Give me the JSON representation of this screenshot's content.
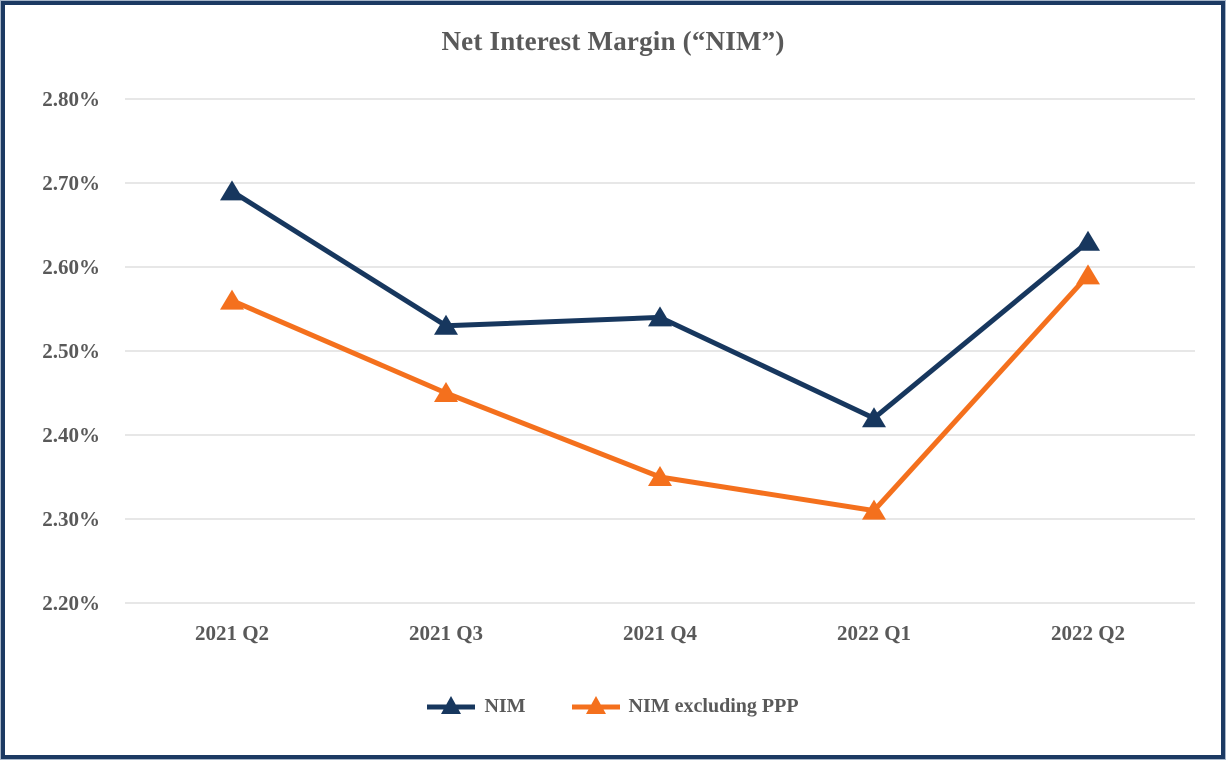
{
  "frame": {
    "border_color": "#1c3a63",
    "outer_line_color": "#a7b6c9",
    "background": "#ffffff"
  },
  "chart_data": {
    "type": "line",
    "title": "Net Interest Margin (“NIM”)",
    "categories": [
      "2021 Q2",
      "2021 Q3",
      "2021 Q4",
      "2022 Q1",
      "2022 Q2"
    ],
    "series": [
      {
        "name": "NIM",
        "values": [
          2.69,
          2.53,
          2.54,
          2.42,
          2.63
        ],
        "color": "#17375E",
        "marker": "triangle-up"
      },
      {
        "name": "NIM excluding PPP",
        "values": [
          2.56,
          2.45,
          2.35,
          2.31,
          2.59
        ],
        "color": "#F4701D",
        "marker": "triangle-up"
      }
    ],
    "y_axis": {
      "min": 2.2,
      "max": 2.8,
      "step": 0.1,
      "tick_labels": [
        "2.80%",
        "2.70%",
        "2.60%",
        "2.50%",
        "2.40%",
        "2.30%",
        "2.20%"
      ]
    },
    "x_axis": {
      "label": ""
    },
    "grid": true,
    "gridline_color": "#E7E7E7",
    "legend_position": "bottom",
    "text_color": "#595959"
  }
}
